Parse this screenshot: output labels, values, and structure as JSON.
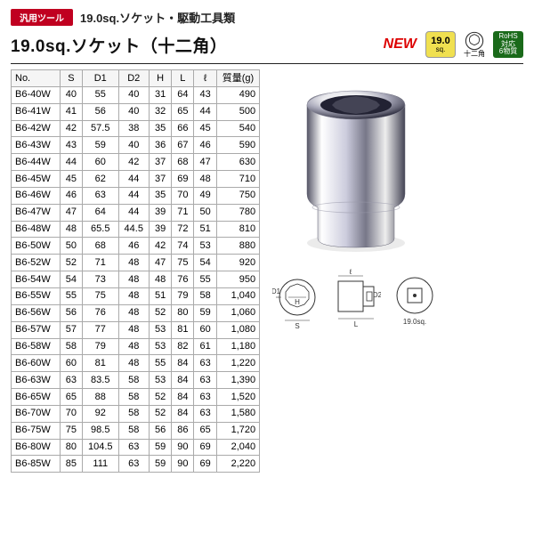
{
  "header": {
    "pill": "汎用ツール",
    "category": "19.0sq.ソケット・駆動工具類",
    "title": "19.0sq.ソケット（十二角）"
  },
  "badges": {
    "new": "NEW",
    "sq_n": "19.0",
    "sq_u": "sq.",
    "poly_label": "十二角",
    "rohs1": "RoHS",
    "rohs2": "対応",
    "rohs3": "6物質"
  },
  "table": {
    "columns": [
      "No.",
      "S",
      "D1",
      "D2",
      "H",
      "L",
      "ℓ",
      "質量(g)"
    ],
    "rows": [
      [
        "B6-40W",
        "40",
        "55",
        "40",
        "31",
        "64",
        "43",
        "490"
      ],
      [
        "B6-41W",
        "41",
        "56",
        "40",
        "32",
        "65",
        "44",
        "500"
      ],
      [
        "B6-42W",
        "42",
        "57.5",
        "38",
        "35",
        "66",
        "45",
        "540"
      ],
      [
        "B6-43W",
        "43",
        "59",
        "40",
        "36",
        "67",
        "46",
        "590"
      ],
      [
        "B6-44W",
        "44",
        "60",
        "42",
        "37",
        "68",
        "47",
        "630"
      ],
      [
        "B6-45W",
        "45",
        "62",
        "44",
        "37",
        "69",
        "48",
        "710"
      ],
      [
        "B6-46W",
        "46",
        "63",
        "44",
        "35",
        "70",
        "49",
        "750"
      ],
      [
        "B6-47W",
        "47",
        "64",
        "44",
        "39",
        "71",
        "50",
        "780"
      ],
      [
        "B6-48W",
        "48",
        "65.5",
        "44.5",
        "39",
        "72",
        "51",
        "810"
      ],
      [
        "B6-50W",
        "50",
        "68",
        "46",
        "42",
        "74",
        "53",
        "880"
      ],
      [
        "B6-52W",
        "52",
        "71",
        "48",
        "47",
        "75",
        "54",
        "920"
      ],
      [
        "B6-54W",
        "54",
        "73",
        "48",
        "48",
        "76",
        "55",
        "950"
      ],
      [
        "B6-55W",
        "55",
        "75",
        "48",
        "51",
        "79",
        "58",
        "1,040"
      ],
      [
        "B6-56W",
        "56",
        "76",
        "48",
        "52",
        "80",
        "59",
        "1,060"
      ],
      [
        "B6-57W",
        "57",
        "77",
        "48",
        "53",
        "81",
        "60",
        "1,080"
      ],
      [
        "B6-58W",
        "58",
        "79",
        "48",
        "53",
        "82",
        "61",
        "1,180"
      ],
      [
        "B6-60W",
        "60",
        "81",
        "48",
        "55",
        "84",
        "63",
        "1,220"
      ],
      [
        "B6-63W",
        "63",
        "83.5",
        "58",
        "53",
        "84",
        "63",
        "1,390"
      ],
      [
        "B6-65W",
        "65",
        "88",
        "58",
        "52",
        "84",
        "63",
        "1,520"
      ],
      [
        "B6-70W",
        "70",
        "92",
        "58",
        "52",
        "84",
        "63",
        "1,580"
      ],
      [
        "B6-75W",
        "75",
        "98.5",
        "58",
        "56",
        "86",
        "65",
        "1,720"
      ],
      [
        "B6-80W",
        "80",
        "104.5",
        "63",
        "59",
        "90",
        "69",
        "2,040"
      ],
      [
        "B6-85W",
        "85",
        "111",
        "63",
        "59",
        "90",
        "69",
        "2,220"
      ]
    ]
  },
  "diagram_labels": {
    "D1": "D1",
    "H": "H",
    "S": "S",
    "L": "L",
    "ell": "ℓ",
    "D2": "D2",
    "drive": "19.0sq."
  }
}
